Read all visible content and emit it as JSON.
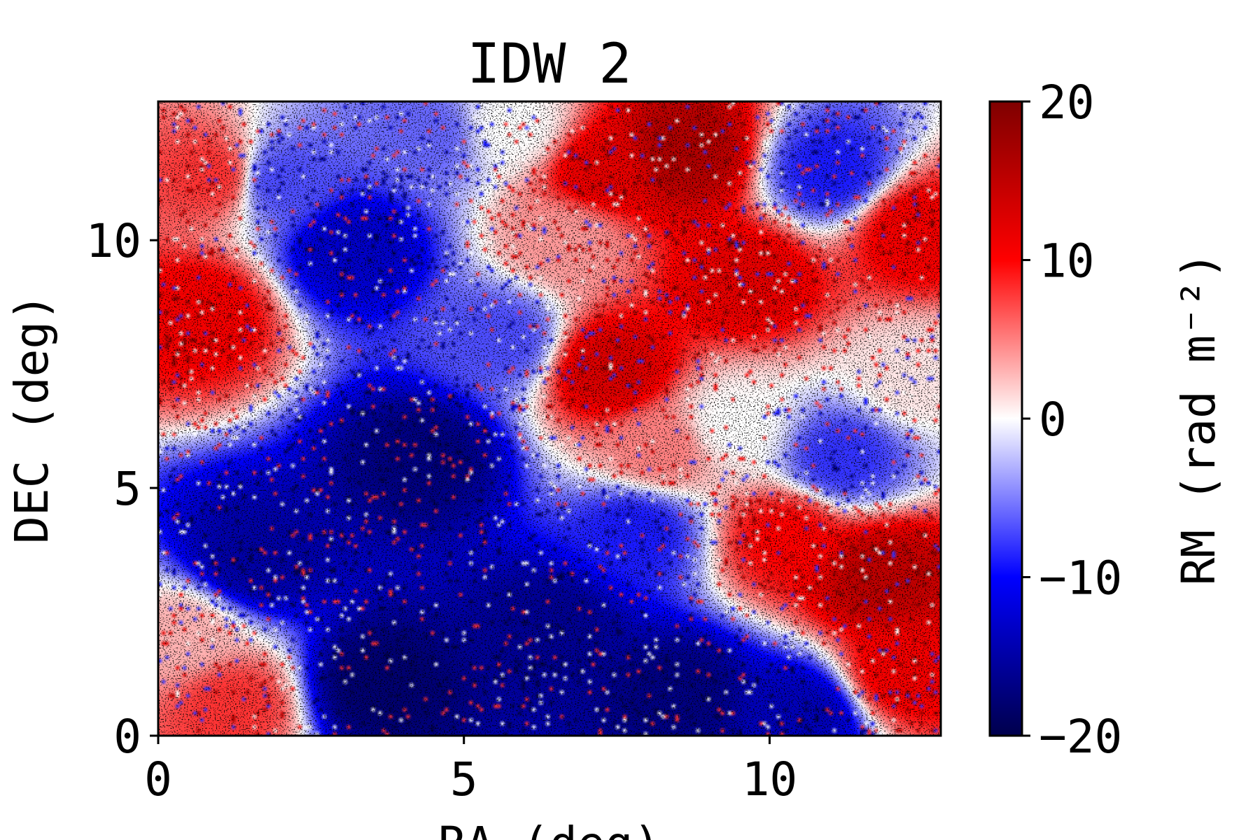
{
  "chart_data": {
    "type": "heatmap",
    "title": "IDW 2",
    "xlabel": "RA (deg)",
    "ylabel": "DEC (deg)",
    "xlim": [
      0,
      12.8
    ],
    "ylim": [
      0,
      12.8
    ],
    "x_ticks": [
      "0",
      "5",
      "10"
    ],
    "x_tick_values": [
      0,
      5,
      10
    ],
    "y_ticks": [
      "0",
      "5",
      "10"
    ],
    "y_tick_values": [
      0,
      5,
      10
    ],
    "colorbar": {
      "label": "RM (rad m⁻²)",
      "colormap": "seismic",
      "range": [
        -20,
        20
      ],
      "ticks": [
        "−20",
        "−10",
        "0",
        "10",
        "20"
      ],
      "tick_values": [
        -20,
        -10,
        0,
        10,
        20
      ],
      "colors": [
        "#00004c",
        "#0000ff",
        "#ffffff",
        "#ff0000",
        "#7f0000"
      ]
    },
    "grid": false,
    "regions": [
      {
        "x": 0.7,
        "y": 8.5,
        "value": 11
      },
      {
        "x": 0.9,
        "y": 11.3,
        "value": 8
      },
      {
        "x": 3.2,
        "y": 9.8,
        "value": -13
      },
      {
        "x": 2.0,
        "y": 11.2,
        "value": -7
      },
      {
        "x": 4.4,
        "y": 12.1,
        "value": -6
      },
      {
        "x": 5.6,
        "y": 8.0,
        "value": -7
      },
      {
        "x": 4.3,
        "y": 5.6,
        "value": -17
      },
      {
        "x": 1.6,
        "y": 3.6,
        "value": -15
      },
      {
        "x": 0.4,
        "y": 2.0,
        "value": 3
      },
      {
        "x": 1.2,
        "y": 0.6,
        "value": 8
      },
      {
        "x": 3.6,
        "y": 1.0,
        "value": -18
      },
      {
        "x": 6.4,
        "y": 2.2,
        "value": -16
      },
      {
        "x": 8.5,
        "y": 0.8,
        "value": -17
      },
      {
        "x": 10.5,
        "y": 0.4,
        "value": -14
      },
      {
        "x": 8.6,
        "y": 11.8,
        "value": 16
      },
      {
        "x": 7.3,
        "y": 11.4,
        "value": 12
      },
      {
        "x": 7.4,
        "y": 7.4,
        "value": 13
      },
      {
        "x": 9.6,
        "y": 9.2,
        "value": 12
      },
      {
        "x": 6.7,
        "y": 10.0,
        "value": 4
      },
      {
        "x": 8.2,
        "y": 5.8,
        "value": 5
      },
      {
        "x": 9.4,
        "y": 6.3,
        "value": 0
      },
      {
        "x": 11.0,
        "y": 11.4,
        "value": -9
      },
      {
        "x": 12.4,
        "y": 10.2,
        "value": 11
      },
      {
        "x": 11.2,
        "y": 5.6,
        "value": -8
      },
      {
        "x": 12.3,
        "y": 7.2,
        "value": 1
      },
      {
        "x": 11.8,
        "y": 3.2,
        "value": 15
      },
      {
        "x": 10.3,
        "y": 4.0,
        "value": 10
      },
      {
        "x": 12.2,
        "y": 1.3,
        "value": 11
      },
      {
        "x": 7.8,
        "y": 4.1,
        "value": -9
      },
      {
        "x": 5.8,
        "y": 12.3,
        "value": 0
      }
    ]
  }
}
